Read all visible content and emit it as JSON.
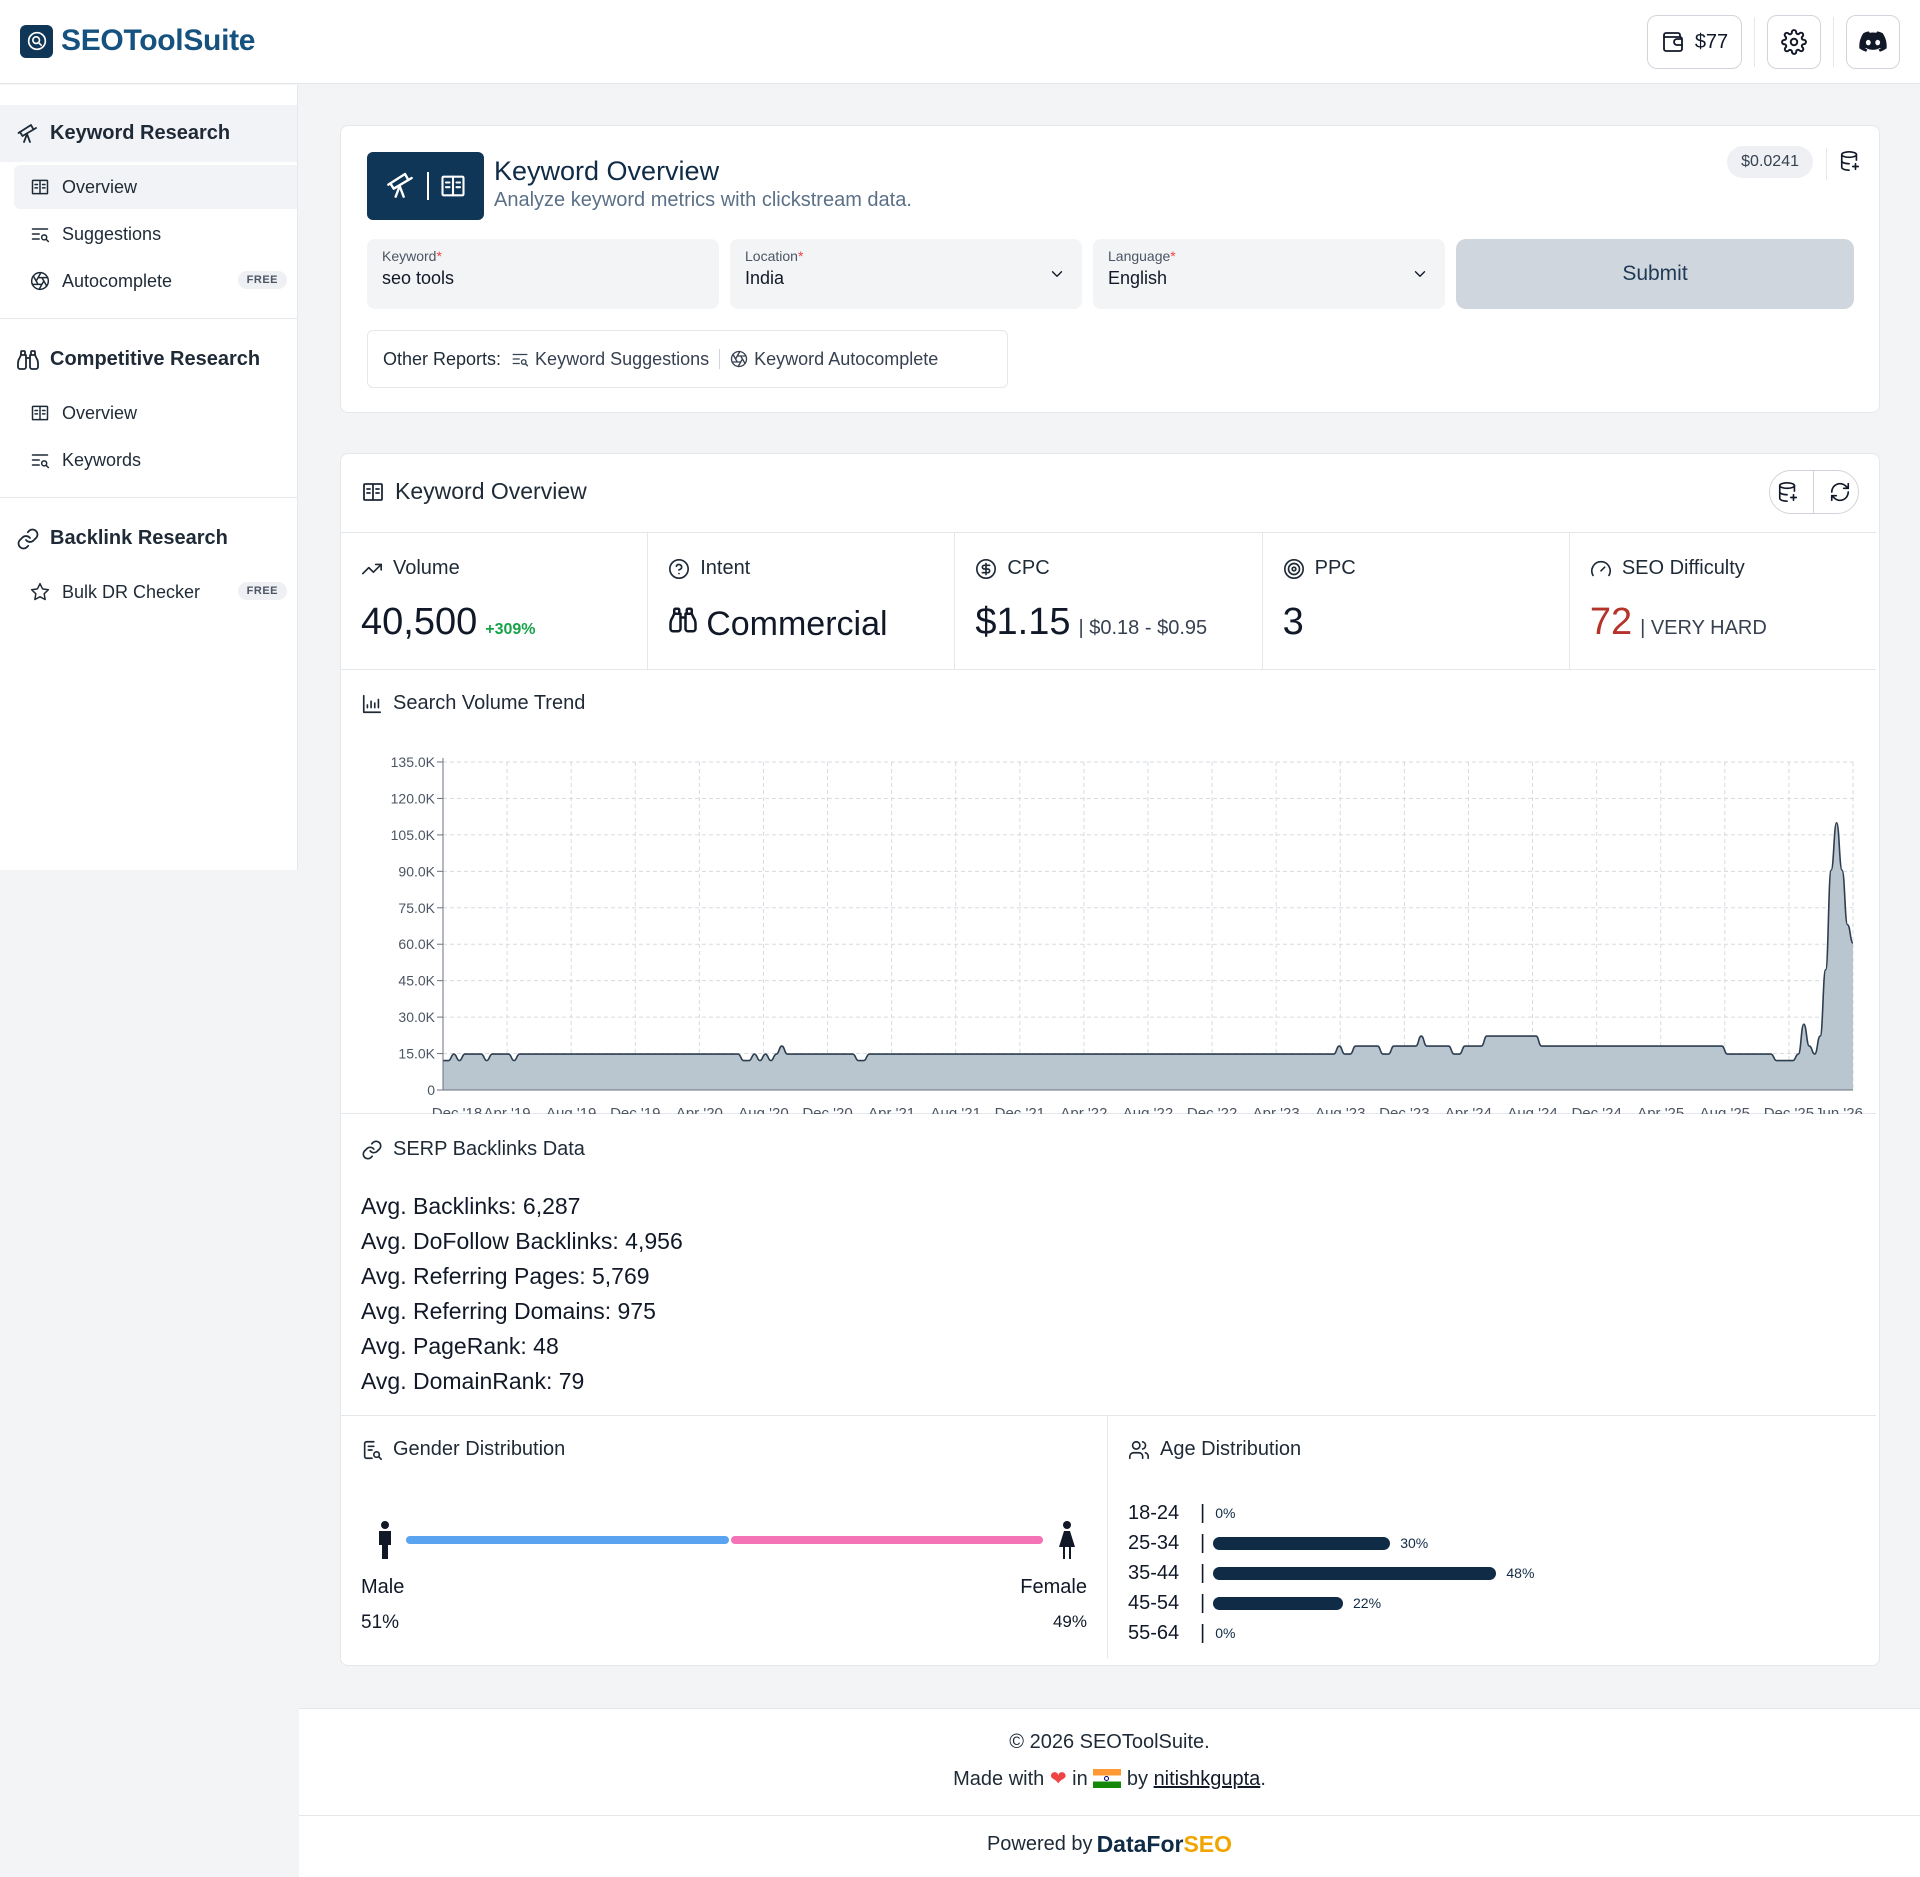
{
  "header": {
    "brand": "SEOToolSuite",
    "balance": "$77"
  },
  "sidebar": {
    "groups": [
      {
        "title": "Keyword Research",
        "items": [
          {
            "label": "Overview"
          },
          {
            "label": "Suggestions"
          },
          {
            "label": "Autocomplete",
            "badge": "FREE"
          }
        ]
      },
      {
        "title": "Competitive Research",
        "items": [
          {
            "label": "Overview"
          },
          {
            "label": "Keywords"
          }
        ]
      },
      {
        "title": "Backlink Research",
        "items": [
          {
            "label": "Bulk DR Checker",
            "badge": "FREE"
          }
        ]
      }
    ]
  },
  "form": {
    "title": "Keyword Overview",
    "subtitle": "Analyze keyword metrics with clickstream data.",
    "cost": "$0.0241",
    "keyword_label": "Keyword",
    "keyword_value": "seo tools",
    "location_label": "Location",
    "location_value": "India",
    "language_label": "Language",
    "language_value": "English",
    "required_mark": "*",
    "submit": "Submit",
    "other_reports_label": "Other Reports:",
    "other_reports": [
      "Keyword Suggestions",
      "Keyword Autocomplete"
    ]
  },
  "overview": {
    "title": "Keyword Overview",
    "volume_label": "Volume",
    "volume_value": "40,500",
    "volume_change": "+309%",
    "intent_label": "Intent",
    "intent_value": "Commercial",
    "cpc_label": "CPC",
    "cpc_value": "$1.15",
    "cpc_range": "| $0.18 - $0.95",
    "ppc_label": "PPC",
    "ppc_value": "3",
    "sd_label": "SEO Difficulty",
    "sd_value": "72",
    "sd_text": "| VERY HARD"
  },
  "trend": {
    "title": "Search Volume Trend"
  },
  "chart_data": {
    "type": "area",
    "title": "",
    "xlabel": "",
    "ylabel": "",
    "ylim": [
      0,
      135000
    ],
    "y_ticks": [
      0,
      15000,
      30000,
      45000,
      60000,
      75000,
      90000,
      105000,
      120000,
      135000
    ],
    "y_tick_labels": [
      "0",
      "15.0K",
      "30.0K",
      "45.0K",
      "60.0K",
      "75.0K",
      "90.0K",
      "105.0K",
      "120.0K",
      "135.0K"
    ],
    "x_tick_labels": [
      "Dec '18",
      "Apr '19",
      "Aug '19",
      "Dec '19",
      "Apr '20",
      "Aug '20",
      "Dec '20",
      "Apr '21",
      "Aug '21",
      "Dec '21",
      "Apr '22",
      "Aug '22",
      "Dec '22",
      "Apr '23",
      "Aug '23",
      "Dec '23",
      "Apr '24",
      "Aug '24",
      "Dec '24",
      "Apr '25",
      "Aug '25",
      "Dec '25",
      "Jun '26"
    ],
    "grid": true,
    "x_start": "Dec 2018",
    "x_end": "Jun 2026",
    "values": [
      12100,
      12100,
      14800,
      12100,
      14800,
      14800,
      14800,
      14800,
      12100,
      14800,
      14800,
      14800,
      14800,
      12100,
      14800,
      14800,
      14800,
      14800,
      14800,
      14800,
      14800,
      14800,
      14800,
      14800,
      14800,
      14800,
      14800,
      14800,
      14800,
      14800,
      14800,
      14800,
      14800,
      14800,
      14800,
      14800,
      14800,
      14800,
      14800,
      14800,
      14800,
      14800,
      14800,
      14800,
      14800,
      14800,
      14800,
      14800,
      14800,
      14800,
      14800,
      14800,
      14800,
      14800,
      14800,
      12100,
      12100,
      14800,
      12100,
      14800,
      12100,
      14800,
      18100,
      14800,
      14800,
      14800,
      14800,
      14800,
      14800,
      14800,
      14800,
      14800,
      14800,
      14800,
      14800,
      14800,
      12100,
      12100,
      14800,
      14800,
      14800,
      14800,
      14800,
      14800,
      14800,
      14800,
      14800,
      14800,
      14800,
      14800,
      14800,
      14800,
      14800,
      14800,
      14800,
      14800,
      14800,
      14800,
      14800,
      14800,
      14800,
      14800,
      14800,
      14800,
      14800,
      14800,
      14800,
      14800,
      14800,
      14800,
      14800,
      14800,
      14800,
      14800,
      14800,
      14800,
      14800,
      14800,
      14800,
      14800,
      14800,
      14800,
      14800,
      14800,
      14800,
      14800,
      14800,
      14800,
      14800,
      14800,
      14800,
      14800,
      14800,
      14800,
      14800,
      14800,
      14800,
      14800,
      14800,
      14800,
      14800,
      14800,
      14800,
      14800,
      14800,
      14800,
      14800,
      14800,
      14800,
      14800,
      14800,
      14800,
      14800,
      14800,
      14800,
      14800,
      14800,
      14800,
      14800,
      14800,
      14800,
      14800,
      14800,
      14800,
      18100,
      14800,
      14800,
      18100,
      18100,
      18100,
      18100,
      18100,
      14800,
      14800,
      18100,
      18100,
      18100,
      18100,
      18100,
      22200,
      18100,
      18100,
      18100,
      18100,
      18100,
      14800,
      14800,
      18100,
      18100,
      18100,
      18100,
      22200,
      22200,
      22200,
      22200,
      22200,
      22200,
      22200,
      22200,
      22200,
      22200,
      18100,
      18100,
      18100,
      18100,
      18100,
      18100,
      18100,
      18100,
      18100,
      18100,
      18100,
      18100,
      18100,
      18100,
      18100,
      18100,
      18100,
      18100,
      18100,
      18100,
      18100,
      18100,
      18100,
      18100,
      18100,
      18100,
      18100,
      18100,
      18100,
      18100,
      18100,
      18100,
      18100,
      18100,
      14800,
      14800,
      14800,
      14800,
      14800,
      14800,
      14800,
      14800,
      14800,
      12100,
      12100,
      12100,
      12100,
      14800,
      27100,
      18100,
      14800,
      22200,
      49500,
      90500,
      110000,
      90500,
      68000,
      60500
    ]
  },
  "backlinks": {
    "title": "SERP Backlinks Data",
    "lines": [
      "Avg. Backlinks: 6,287",
      "Avg. DoFollow Backlinks: 4,956",
      "Avg. Referring Pages: 5,769",
      "Avg. Referring Domains: 975",
      "Avg. PageRank: 48",
      "Avg. DomainRank: 79"
    ]
  },
  "gender": {
    "title": "Gender Distribution",
    "male_label": "Male",
    "male_pct": "51%",
    "male_share": 51,
    "female_label": "Female",
    "female_pct": "49%",
    "female_share": 49,
    "male_color": "#5aa3f0",
    "female_color": "#f472b6"
  },
  "age": {
    "title": "Age Distribution",
    "rows": [
      {
        "label": "18-24",
        "sep": "|",
        "pct": "0%",
        "value": 0
      },
      {
        "label": "25-34",
        "sep": "|",
        "pct": "30%",
        "value": 30
      },
      {
        "label": "35-44",
        "sep": "|",
        "pct": "48%",
        "value": 48
      },
      {
        "label": "45-54",
        "sep": "|",
        "pct": "22%",
        "value": 22
      },
      {
        "label": "55-64",
        "sep": "|",
        "pct": "0%",
        "value": 0
      }
    ]
  },
  "footer": {
    "copyright": "© 2026 SEOToolSuite.",
    "made_with": "Made with",
    "in": "in",
    "by": "by",
    "author": "nitishkgupta",
    "period": ".",
    "powered_by": "Powered by",
    "dfs_a": "DataFor",
    "dfs_b": "SEO"
  },
  "colors": {
    "brand": "#0f3557",
    "accent": "#16527f",
    "area_fill": "#b5c2cc",
    "area_line": "#2d3e50",
    "danger": "#b5332a",
    "success": "#16a34a"
  }
}
